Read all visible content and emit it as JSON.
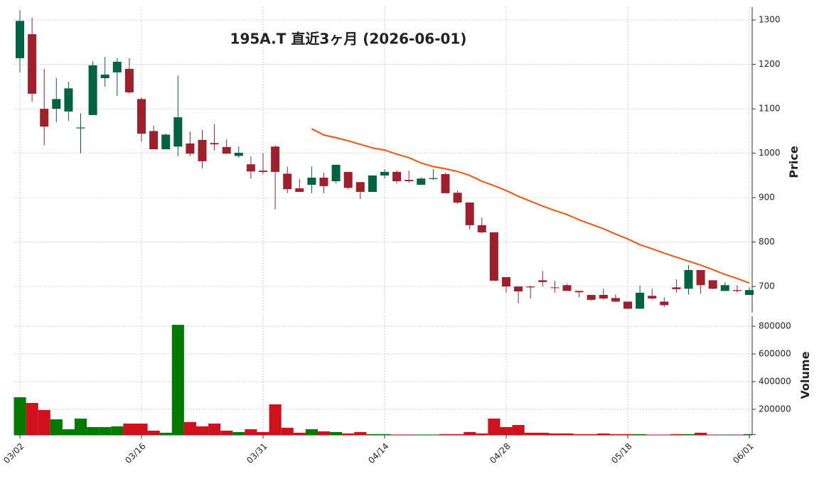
{
  "chart_data": {
    "type": "candlestick",
    "title": "195A.T 直近3ヶ月 (2026-06-01)",
    "categories": [
      "03/02",
      null,
      null,
      null,
      null,
      null,
      null,
      null,
      null,
      null,
      "03/16",
      null,
      null,
      null,
      null,
      null,
      null,
      null,
      null,
      null,
      "03/31",
      null,
      null,
      null,
      null,
      null,
      null,
      null,
      null,
      null,
      "04/14",
      null,
      null,
      null,
      null,
      null,
      null,
      null,
      null,
      null,
      "04/28",
      null,
      null,
      null,
      null,
      null,
      null,
      null,
      null,
      null,
      "05/18",
      null,
      null,
      null,
      null,
      null,
      null,
      null,
      null,
      null,
      "06/01"
    ],
    "open": [
      1214,
      1268,
      1100,
      1100,
      1094,
      1056,
      1086,
      1169,
      1182,
      1190,
      1122,
      1050,
      1009,
      1015,
      1022,
      1030,
      1023,
      1014,
      994,
      975,
      961,
      1015,
      954,
      921,
      929,
      945,
      937,
      958,
      935,
      913,
      950,
      958,
      940,
      929,
      942,
      953,
      911,
      889,
      838,
      822,
      721,
      700,
      700,
      714,
      698,
      703,
      690,
      681,
      681,
      674,
      666,
      650,
      679,
      666,
      698,
      695,
      737,
      714,
      690,
      692,
      681
    ],
    "high": [
      1322,
      1305,
      1190,
      1169,
      1161,
      1090,
      1207,
      1217,
      1214,
      1214,
      1126,
      1062,
      1044,
      1175,
      1049,
      1052,
      1065,
      1031,
      1015,
      993,
      1000,
      1018,
      970,
      942,
      970,
      956,
      974,
      958,
      935,
      950,
      964,
      961,
      961,
      946,
      964,
      956,
      916,
      889,
      855,
      822,
      721,
      700,
      702,
      735,
      713,
      706,
      690,
      681,
      695,
      682,
      666,
      702,
      695,
      676,
      716,
      748,
      737,
      714,
      710,
      703,
      698
    ],
    "low": [
      1182,
      1116,
      1018,
      1070,
      1073,
      1000,
      1086,
      1150,
      1129,
      1134,
      1026,
      1009,
      1009,
      993,
      994,
      966,
      1006,
      999,
      990,
      943,
      953,
      874,
      910,
      913,
      910,
      910,
      932,
      919,
      897,
      913,
      943,
      932,
      934,
      929,
      940,
      910,
      886,
      828,
      820,
      713,
      686,
      662,
      673,
      700,
      686,
      690,
      676,
      668,
      670,
      665,
      649,
      650,
      670,
      654,
      686,
      682,
      684,
      694,
      690,
      686,
      681
    ],
    "close": [
      1298,
      1134,
      1060,
      1122,
      1146,
      1058,
      1198,
      1177,
      1206,
      1137,
      1044,
      1009,
      1042,
      1081,
      999,
      982,
      1020,
      999,
      1001,
      959,
      958,
      958,
      919,
      913,
      945,
      926,
      974,
      922,
      913,
      950,
      958,
      937,
      937,
      943,
      944,
      910,
      889,
      838,
      822,
      713,
      700,
      689,
      698,
      710,
      697,
      690,
      687,
      670,
      673,
      666,
      650,
      686,
      673,
      658,
      694,
      737,
      703,
      695,
      703,
      690,
      692
    ],
    "up_color": "#006340",
    "down_color": "#a01f2a",
    "ylim": [
      641,
      1329
    ],
    "yticks": [
      700,
      800,
      900,
      1000,
      1100,
      1200,
      1300
    ],
    "ylabel": "Price",
    "grid": true,
    "ma": {
      "color": "#e8601c",
      "values": [
        null,
        null,
        null,
        null,
        null,
        null,
        null,
        null,
        null,
        null,
        null,
        null,
        null,
        null,
        null,
        null,
        null,
        null,
        null,
        null,
        null,
        null,
        null,
        null,
        1055,
        1041,
        1035,
        1028,
        1020,
        1012,
        1007,
        998,
        990,
        978,
        970,
        965,
        959,
        950,
        937,
        927,
        916,
        903,
        892,
        881,
        871,
        862,
        850,
        840,
        830,
        818,
        807,
        794,
        785,
        775,
        766,
        757,
        748,
        738,
        727,
        718,
        708
      ]
    },
    "volume": {
      "values": [
        287000,
        246000,
        195000,
        128000,
        56000,
        133000,
        72000,
        72000,
        77000,
        97000,
        97000,
        46000,
        31000,
        810000,
        108000,
        77000,
        97000,
        46000,
        36000,
        56000,
        36000,
        236000,
        67000,
        31000,
        56000,
        41000,
        36000,
        26000,
        36000,
        21000,
        21000,
        18000,
        18000,
        18000,
        18000,
        21000,
        21000,
        36000,
        26000,
        133000,
        72000,
        87000,
        31000,
        31000,
        26000,
        26000,
        21000,
        21000,
        26000,
        21000,
        21000,
        21000,
        17000,
        17000,
        21000,
        21000,
        31000,
        17000,
        17000,
        17000,
        21000
      ],
      "up_color": "#007a00",
      "down_color": "#d0101a",
      "ylim": [
        15000,
        872000
      ],
      "yticks": [
        200000,
        400000,
        600000,
        800000
      ],
      "ylabel": "Volume"
    }
  }
}
